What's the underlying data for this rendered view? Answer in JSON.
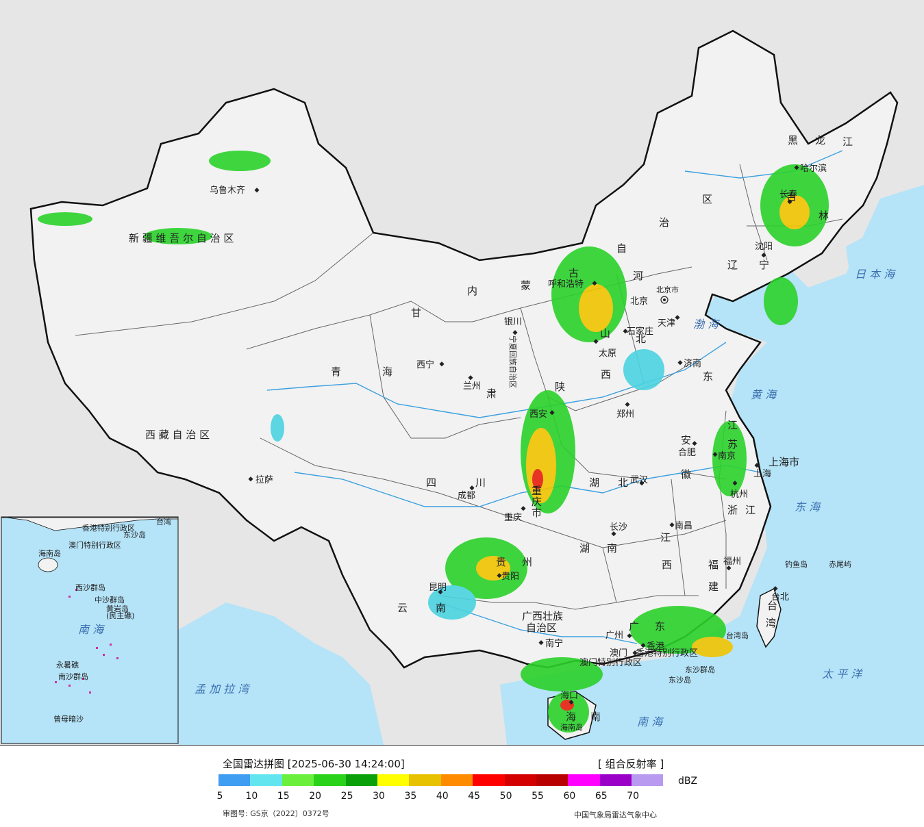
{
  "map": {
    "colors": {
      "sea": "#b5e3f8",
      "land_china": "#f2f2f2",
      "land_neighbor": "#e6e6e6",
      "border": "#111111",
      "river": "#3ba0e0",
      "echo_light": "#4ad3e0",
      "echo_moderate": "#2bd12b",
      "echo_strong": "#f0c400",
      "echo_heavy": "#e8200f"
    },
    "labels": {
      "provinces": [
        "新 疆 维 吾 尔 自 治 区",
        "西 藏 自 治 区",
        "青",
        "海",
        "甘",
        "肃",
        "内",
        "蒙",
        "古",
        "自",
        "治",
        "区",
        "黑",
        "龙",
        "江",
        "吉",
        "林",
        "辽",
        "宁",
        "河",
        "北",
        "山",
        "西",
        "东",
        "陕",
        "四",
        "川",
        "云",
        "南",
        "贵",
        "州",
        "湖",
        "北",
        "湖",
        "南",
        "江",
        "西",
        "安",
        "徽",
        "江",
        "苏",
        "浙",
        "江",
        "福",
        "建",
        "广",
        "东",
        "广西壮族",
        "自治区",
        "海",
        "南",
        "上海市",
        "重",
        "庆",
        "市",
        "宁夏回族自治区",
        "台",
        "湾"
      ],
      "cities": [
        "乌鲁木齐",
        "拉萨",
        "西宁",
        "兰州",
        "银川",
        "呼和浩特",
        "北京",
        "北京市",
        "天津",
        "石家庄",
        "太原",
        "济南",
        "郑州",
        "西安",
        "成都",
        "重庆",
        "武汉",
        "合肥",
        "南京",
        "上海",
        "杭州",
        "长沙",
        "南昌",
        "福州",
        "台北",
        "昆明",
        "贵阳",
        "南宁",
        "广州",
        "澳门",
        "香港",
        "海口",
        "哈尔滨",
        "长春",
        "沈阳"
      ],
      "seas": [
        "渤 海",
        "黄 海",
        "东 海",
        "南 海",
        "日 本 海",
        "太 平 洋",
        "孟 加 拉 湾"
      ],
      "islands": [
        "钓鱼岛",
        "赤尾屿",
        "台湾岛",
        "东沙群岛",
        "东沙岛",
        "海南岛"
      ],
      "special": [
        "香港特别行政区",
        "澳门特别行政区"
      ],
      "inset": [
        "南 海",
        "中沙群岛",
        "黄岩岛",
        "(民主礁)",
        "南沙群岛",
        "永暑礁",
        "曾母暗沙",
        "西沙群岛",
        "海南岛",
        "香港特别行政区",
        "澳门特别行政区",
        "东沙岛",
        "台湾"
      ]
    }
  },
  "legend": {
    "title": "全国雷达拼图 [2025-06-30 14:24:00]",
    "product": "[ 组合反射率 ]",
    "unit": "dBZ",
    "ticks": [
      "5",
      "10",
      "15",
      "20",
      "25",
      "30",
      "35",
      "40",
      "45",
      "50",
      "55",
      "60",
      "65",
      "70"
    ],
    "colors": [
      "#3f9df2",
      "#63e5f0",
      "#6af03c",
      "#2ad21a",
      "#0aa00a",
      "#ffff00",
      "#e6c200",
      "#ff8c00",
      "#ff0000",
      "#d40000",
      "#b80000",
      "#ff00ff",
      "#9a00c8",
      "#b89af0"
    ],
    "review_number": "审图号: GS京（2022）0372号",
    "source": "中国气象局雷达气象中心"
  }
}
